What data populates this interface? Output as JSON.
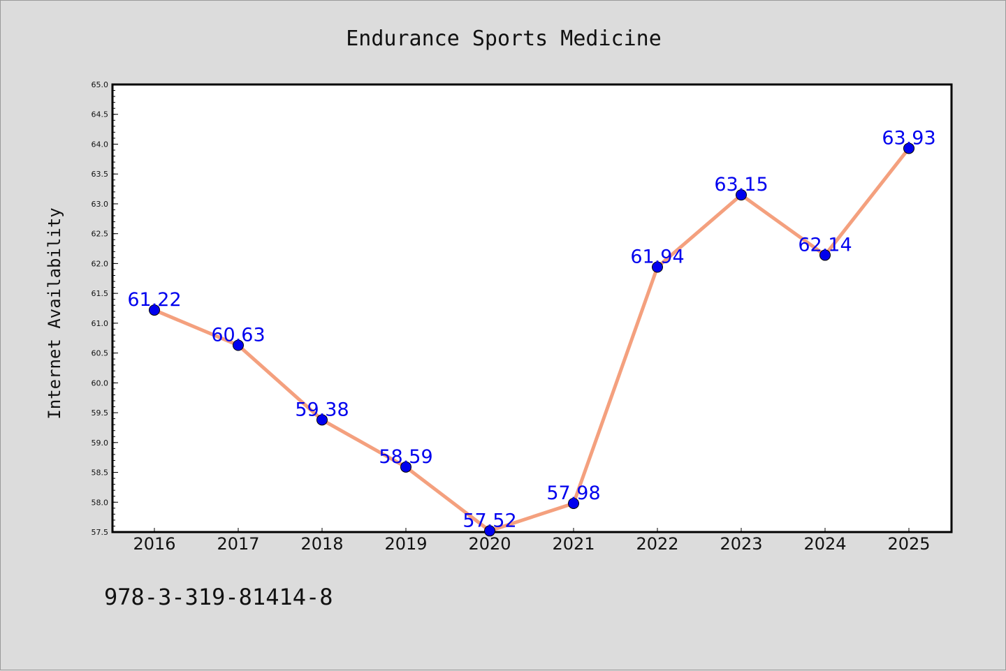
{
  "chart_data": {
    "type": "line",
    "title": "Endurance Sports Medicine",
    "xlabel": "",
    "ylabel": "Internet Availability",
    "categories": [
      "2016",
      "2017",
      "2018",
      "2019",
      "2020",
      "2021",
      "2022",
      "2023",
      "2024",
      "2025"
    ],
    "series": [
      {
        "values": [
          61.22,
          60.63,
          59.38,
          58.59,
          57.52,
          57.98,
          61.94,
          63.15,
          62.14,
          63.93
        ],
        "line_color": "#f4a07e",
        "marker_color": "#0000ee",
        "label_color": "#0000ee"
      }
    ],
    "ylim": [
      57.5,
      65.0
    ],
    "yticks": [
      "57.5",
      "58.0",
      "58.5",
      "59.0",
      "59.5",
      "60.0",
      "60.5",
      "61.0",
      "61.5",
      "62.0",
      "62.5",
      "63.0",
      "63.5",
      "64.0",
      "64.5",
      "65.0"
    ],
    "grid": false,
    "legend": "none",
    "background": "#dcdcdc",
    "plot_background": "#ffffff"
  },
  "footnote": "978-3-319-81414-8"
}
